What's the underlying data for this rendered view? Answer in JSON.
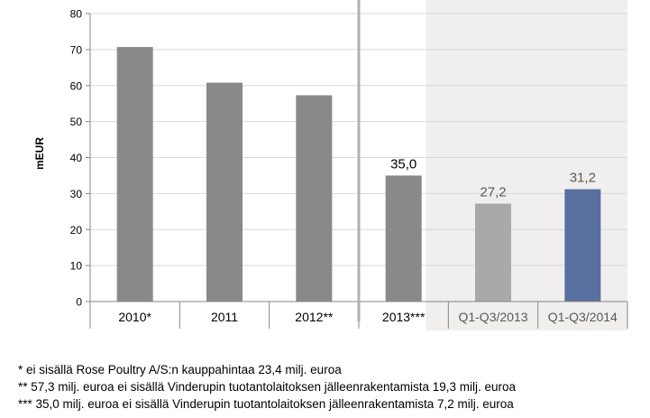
{
  "chart_data": {
    "type": "bar",
    "ylabel": "mEUR",
    "ylim": [
      0,
      80
    ],
    "yticks": [
      0,
      10,
      20,
      30,
      40,
      50,
      60,
      70,
      80
    ],
    "grid": true,
    "categories": [
      "2010*",
      "2011",
      "2012**",
      "2013***",
      "Q1-Q3/2013",
      "Q1-Q3/2014"
    ],
    "values": [
      70.7,
      60.8,
      57.3,
      35.0,
      27.2,
      31.2
    ],
    "data_labels": [
      "",
      "",
      "",
      "35,0",
      "27,2",
      "31,2"
    ],
    "bar_colors": [
      "#898989",
      "#898989",
      "#898989",
      "#898989",
      "#a9a9a9",
      "#586f9f"
    ],
    "shaded_region": {
      "from_category": "Q1-Q3/2013",
      "to_category": "Q1-Q3/2014",
      "color": "#f0efed"
    },
    "separator_after_category": "2012**"
  },
  "footnotes": [
    "* ei sisällä Rose Poultry A/S:n kauppahintaa 23,4 milj. euroa",
    "** 57,3 milj. euroa ei sisällä Vinderupin tuotantolaitoksen jälleenrakentamista 19,3 milj. euroa",
    "*** 35,0 milj. euroa ei sisällä Vinderupin tuotantolaitoksen jälleenrakentamista 7,2 milj. euroa"
  ]
}
